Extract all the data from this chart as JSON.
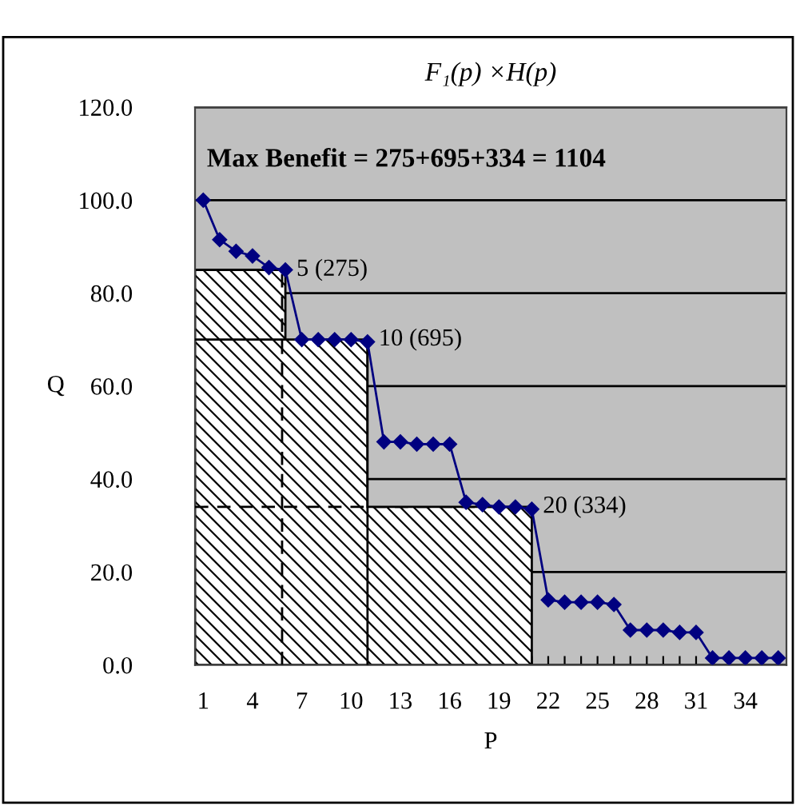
{
  "chart_data": {
    "type": "line",
    "title": "F₁(p) ×H(p)",
    "xlabel": "P",
    "ylabel": "Q",
    "x": [
      1,
      2,
      3,
      4,
      5,
      6,
      7,
      8,
      9,
      10,
      11,
      12,
      13,
      14,
      15,
      16,
      17,
      18,
      19,
      20,
      21,
      22,
      23,
      24,
      25,
      26,
      27,
      28,
      29,
      30,
      31,
      32,
      33,
      34,
      35,
      36
    ],
    "series": [
      {
        "type": "area",
        "color": "#000000",
        "x": [
          0.5,
          6,
          6,
          11,
          11,
          21
        ],
        "values": [
          85,
          85,
          70,
          70,
          34,
          34
        ]
      },
      {
        "color": "#000080",
        "marker": "diamond",
        "values": [
          100,
          91.5,
          89,
          88,
          85.5,
          85,
          70,
          70,
          70,
          70,
          69.5,
          48,
          48,
          47.5,
          47.5,
          47.5,
          35,
          34.5,
          34,
          34,
          33.5,
          14,
          13.5,
          13.5,
          13.5,
          13,
          7.5,
          7.5,
          7.5,
          7,
          7,
          1.5,
          1.5,
          1.5,
          1.5,
          1.5
        ]
      }
    ],
    "ref_lines": [
      {
        "axis": "x",
        "value": 5.8,
        "line_style": "dashed",
        "color": "#000000"
      },
      {
        "axis": "y",
        "value": 34,
        "line_style": "dashed",
        "color": "#000000"
      },
      {
        "axis": "x",
        "value": 11,
        "line_style": "solid",
        "color": "#000000"
      },
      {
        "axis": "y",
        "value": 70,
        "line_style": "solid",
        "color": "#000000"
      }
    ],
    "annotations": [
      "Max Benefit = 275+695+334 = 1104",
      {
        "text": "5 (275)",
        "x": 6,
        "y": 85
      },
      {
        "text": "10 (695)",
        "x": 11,
        "y": 70
      },
      {
        "text": "20 (334)",
        "x": 21,
        "y": 34
      }
    ],
    "xlim": [
      0.5,
      36.5
    ],
    "xticks": [
      1,
      {
        "value": 2,
        "label": null
      },
      {
        "value": 3,
        "label": null
      },
      4,
      {
        "value": 5,
        "label": null
      },
      {
        "value": 6,
        "label": null
      },
      7,
      {
        "value": 8,
        "label": null
      },
      {
        "value": 9,
        "label": null
      },
      10,
      {
        "value": 11,
        "label": null
      },
      {
        "value": 12,
        "label": null
      },
      13,
      {
        "value": 14,
        "label": null
      },
      {
        "value": 15,
        "label": null
      },
      16,
      {
        "value": 17,
        "label": null
      },
      {
        "value": 18,
        "label": null
      },
      19,
      {
        "value": 20,
        "label": null
      },
      {
        "value": 21,
        "label": null
      },
      22,
      {
        "value": 23,
        "label": null
      },
      {
        "value": 24,
        "label": null
      },
      25,
      {
        "value": 26,
        "label": null
      },
      {
        "value": 27,
        "label": null
      },
      28,
      {
        "value": 29,
        "label": null
      },
      {
        "value": 30,
        "label": null
      },
      31,
      {
        "value": 32,
        "label": null
      },
      {
        "value": 33,
        "label": null
      },
      34,
      {
        "value": 35,
        "label": null
      },
      {
        "value": 36,
        "label": null
      }
    ],
    "ylim": [
      0,
      120
    ],
    "yticks": [
      {
        "value": 0,
        "label": "0.0"
      },
      {
        "value": 20,
        "label": "20.0"
      },
      {
        "value": 40,
        "label": "40.0"
      },
      {
        "value": 60,
        "label": "60.0"
      },
      {
        "value": 80,
        "label": "80.0"
      },
      {
        "value": 100,
        "label": "100.0"
      },
      {
        "value": 120,
        "label": "120.0"
      }
    ],
    "grid": "y",
    "legend": false
  }
}
